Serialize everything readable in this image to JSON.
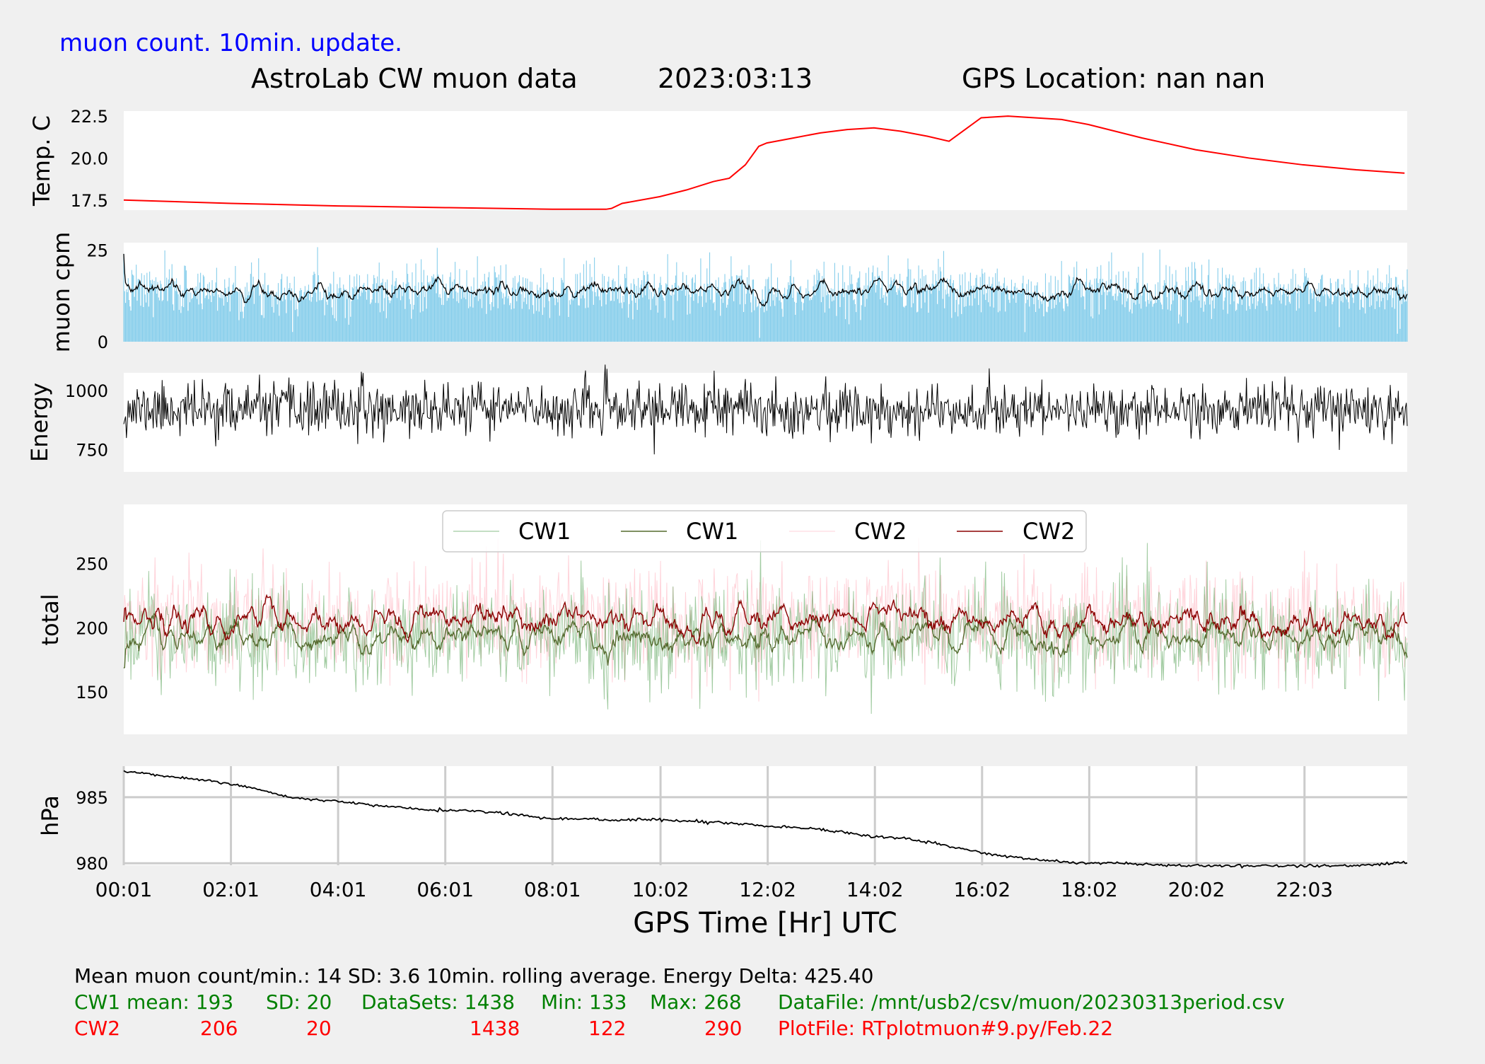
{
  "header": {
    "subtitle": "muon count.  10min. update.",
    "title": "AstroLab CW muon data",
    "date": "2023:03:13",
    "location": "GPS Location: nan   nan"
  },
  "colors": {
    "background": "#f0f0f0",
    "panel": "#ffffff",
    "temp_line": "#ff0000",
    "muon_bars": "#87ceeb",
    "muon_avg": "#000000",
    "energy_line": "#000000",
    "cw1_raw": "#2e8b2e",
    "cw1_avg": "#556b2f",
    "cw2_raw": "#ffc0cb",
    "cw2_avg": "#8b0000",
    "pressure_line": "#000000",
    "grid": "#cccccc",
    "subtitle_text": "#0000ff",
    "cw1_text": "#008000",
    "cw2_text": "#ff0000"
  },
  "chart_data": [
    {
      "id": "temperature",
      "type": "line",
      "ylabel": "Temp. C",
      "yticks": [
        "17.5",
        "20.0",
        "22.5"
      ],
      "ylim": [
        16.9,
        22.8
      ],
      "series": [
        {
          "x": [
            0.0,
            2.0,
            4.0,
            6.0,
            8.0,
            9.0,
            9.1,
            9.3,
            10.0,
            10.5,
            11.0,
            11.3,
            11.6,
            11.85,
            12.0,
            12.5,
            13.0,
            13.5,
            14.0,
            14.5,
            15.0,
            15.4,
            15.7,
            16.0,
            16.5,
            17.0,
            17.5,
            18.0,
            19.0,
            20.0,
            21.0,
            22.0,
            23.0,
            23.9
          ],
          "y": [
            17.5,
            17.3,
            17.15,
            17.05,
            16.95,
            16.95,
            17.0,
            17.3,
            17.7,
            18.1,
            18.6,
            18.8,
            19.6,
            20.7,
            20.9,
            21.2,
            21.5,
            21.7,
            21.8,
            21.6,
            21.3,
            21.0,
            21.7,
            22.4,
            22.5,
            22.4,
            22.3,
            22.0,
            21.2,
            20.5,
            20.0,
            19.6,
            19.3,
            19.1
          ]
        }
      ]
    },
    {
      "id": "muon_cpm",
      "type": "bar",
      "ylabel": "muon cpm",
      "yticks": [
        "0",
        "25"
      ],
      "ylim": [
        0,
        27
      ],
      "generated": {
        "count": 1438,
        "mean": 14,
        "sd": 3.6,
        "seed": 7,
        "rolling": 10
      }
    },
    {
      "id": "energy",
      "type": "line",
      "ylabel": "Energy",
      "yticks": [
        "750",
        "1000"
      ],
      "ylim": [
        655,
        1075
      ],
      "generated": {
        "count": 1438,
        "mean": 920,
        "sd": 55,
        "seed": 11
      }
    },
    {
      "id": "total",
      "type": "line",
      "ylabel": "total",
      "yticks": [
        "150",
        "200",
        "250"
      ],
      "ylim": [
        117,
        296
      ],
      "legend_position": "top-center",
      "series": [
        {
          "name": "CW1",
          "kind": "raw",
          "generated": {
            "count": 1438,
            "mean": 193,
            "sd": 20,
            "min": 133,
            "max": 268,
            "seed": 21
          }
        },
        {
          "name": "CW1",
          "kind": "avg",
          "window": 10
        },
        {
          "name": "CW2",
          "kind": "raw",
          "generated": {
            "count": 1438,
            "mean": 206,
            "sd": 20,
            "min": 122,
            "max": 290,
            "seed": 33
          }
        },
        {
          "name": "CW2",
          "kind": "avg",
          "window": 10
        }
      ]
    },
    {
      "id": "pressure",
      "type": "line",
      "ylabel": "hPa",
      "yticks": [
        "980",
        "985"
      ],
      "ylim": [
        979.85,
        987.35
      ],
      "grid": true,
      "xticks": [
        "00:01",
        "02:01",
        "04:01",
        "06:01",
        "08:01",
        "10:02",
        "12:02",
        "14:02",
        "16:02",
        "18:02",
        "20:02",
        "22:03"
      ],
      "xlabel": "GPS Time  [Hr] UTC",
      "series": [
        {
          "x": [
            0.0,
            0.7,
            1.5,
            2.0,
            2.5,
            3.0,
            3.3,
            4.0,
            4.6,
            5.0,
            5.5,
            6.0,
            6.5,
            7.0,
            7.5,
            8.0,
            9.0,
            10.0,
            11.0,
            11.5,
            12.0,
            12.5,
            13.0,
            13.5,
            14.0,
            14.5,
            15.0,
            15.5,
            16.0,
            16.5,
            17.0,
            17.5,
            18.0,
            18.5,
            19.0,
            20.0,
            21.0,
            22.0,
            23.0,
            23.9
          ],
          "y": [
            987.0,
            986.6,
            986.3,
            986.0,
            985.6,
            985.1,
            984.9,
            984.7,
            984.4,
            984.3,
            984.1,
            984.0,
            984.0,
            983.8,
            983.6,
            983.4,
            983.3,
            983.3,
            983.1,
            983.0,
            982.8,
            982.7,
            982.6,
            982.3,
            982.0,
            981.9,
            981.6,
            981.2,
            980.8,
            980.5,
            980.3,
            980.1,
            980.0,
            980.05,
            979.9,
            979.8,
            979.8,
            979.8,
            979.85,
            980.05
          ]
        }
      ]
    }
  ],
  "stats": {
    "line1": "Mean muon count/min.: 14  SD: 3.6   10min. rolling average.    Energy Delta:  425.40",
    "cw1": {
      "label": "CW1 mean: 193",
      "sd": "SD: 20",
      "datasets": "DataSets: 1438",
      "min": "Min: 133",
      "max": "Max: 268",
      "file": "DataFile: /mnt/usb2/csv/muon/20230313period.csv"
    },
    "cw2": {
      "label": "CW2",
      "mean": "206",
      "sd": "20",
      "datasets": "1438",
      "min": "122",
      "max": "290",
      "file": "PlotFile: RTplotmuon#9.py/Feb.22"
    }
  }
}
